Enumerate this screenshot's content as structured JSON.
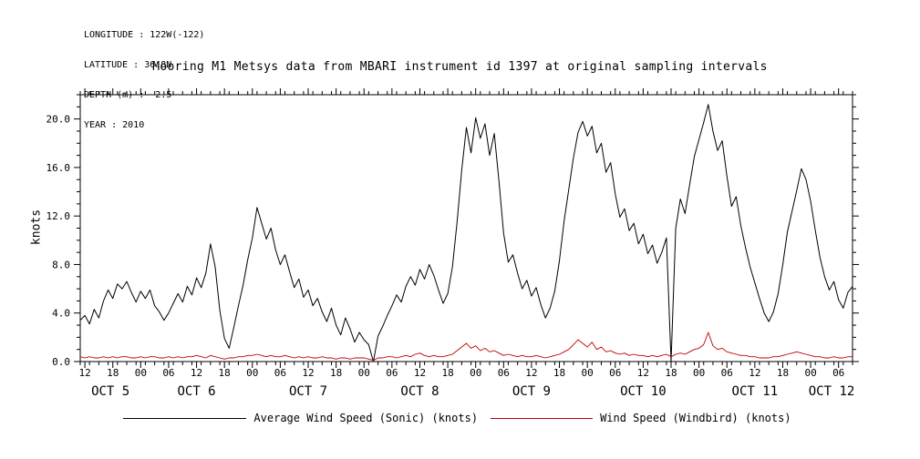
{
  "header": {
    "longitude": "LONGITUDE : 122W(-122)",
    "latitude": "LATITUDE : 36.8N",
    "depth": "DEPTH (m) : -2.5",
    "year": "YEAR : 2010"
  },
  "title": "Mooring M1 Metsys data from MBARI instrument id 1397 at original sampling intervals",
  "legend": [
    {
      "label": "Average Wind Speed (Sonic) (knots)",
      "color": "#000000"
    },
    {
      "label": "Wind Speed (Windbird) (knots)",
      "color": "#c00000"
    }
  ],
  "chart_data": {
    "type": "line",
    "title": "Mooring M1 Metsys data from MBARI instrument id 1397 at original sampling intervals",
    "xlabel": "",
    "ylabel": "knots",
    "ylim": [
      0,
      22
    ],
    "yticks": [
      0,
      4,
      8,
      12,
      16,
      20
    ],
    "ytick_labels": [
      "0.0",
      "4.0",
      "8.0",
      "12.0",
      "16.0",
      "20.0"
    ],
    "y_minor_step": 1,
    "grid": false,
    "legend_position": "bottom",
    "x_hours_span": 166,
    "x_start": "OCT 5 11:00",
    "sample_interval_hours": 1,
    "xtick_first_hour": 1,
    "xtick_step_hours": 6,
    "x_minor_step_hours": 2,
    "xtick_labels": [
      "12",
      "18",
      "00",
      "06",
      "12",
      "18",
      "00",
      "06",
      "12",
      "18",
      "00",
      "06",
      "12",
      "18",
      "00",
      "06",
      "12",
      "18",
      "00",
      "06",
      "12",
      "18",
      "00",
      "06",
      "12",
      "18",
      "00",
      "06"
    ],
    "date_labels": [
      {
        "label": "OCT 5",
        "center_hour": 6.5
      },
      {
        "label": "OCT 6",
        "center_hour": 25
      },
      {
        "label": "OCT 7",
        "center_hour": 49
      },
      {
        "label": "OCT 8",
        "center_hour": 73
      },
      {
        "label": "OCT 9",
        "center_hour": 97
      },
      {
        "label": "OCT 10",
        "center_hour": 121
      },
      {
        "label": "OCT 11",
        "center_hour": 145
      },
      {
        "label": "OCT 12",
        "center_hour": 161.5
      }
    ],
    "series": [
      {
        "name": "Average Wind Speed (Sonic) (knots)",
        "color": "#000000",
        "values": [
          3.4,
          3.8,
          3.1,
          4.3,
          3.6,
          5.0,
          5.9,
          5.2,
          6.4,
          6.0,
          6.6,
          5.7,
          4.9,
          5.8,
          5.2,
          5.9,
          4.6,
          4.1,
          3.4,
          4.0,
          4.8,
          5.6,
          4.9,
          6.2,
          5.5,
          6.9,
          6.1,
          7.3,
          9.7,
          7.8,
          4.2,
          1.9,
          1.1,
          2.8,
          4.6,
          6.3,
          8.4,
          10.2,
          12.7,
          11.4,
          10.1,
          11.0,
          9.2,
          8.0,
          8.8,
          7.4,
          6.1,
          6.8,
          5.3,
          5.9,
          4.6,
          5.2,
          4.1,
          3.3,
          4.4,
          3.0,
          2.2,
          3.6,
          2.7,
          1.6,
          2.4,
          1.8,
          1.4,
          0.0,
          2.1,
          2.9,
          3.8,
          4.6,
          5.5,
          4.9,
          6.2,
          7.0,
          6.3,
          7.6,
          6.8,
          8.0,
          7.1,
          5.9,
          4.8,
          5.6,
          7.8,
          11.5,
          15.8,
          19.3,
          17.2,
          20.1,
          18.4,
          19.6,
          17.0,
          18.8,
          14.9,
          10.6,
          8.2,
          8.8,
          7.3,
          6.0,
          6.7,
          5.4,
          6.1,
          4.7,
          3.6,
          4.4,
          5.8,
          8.3,
          11.6,
          14.2,
          16.8,
          18.9,
          19.8,
          18.6,
          19.4,
          17.2,
          18.0,
          15.6,
          16.4,
          13.8,
          11.9,
          12.6,
          10.8,
          11.4,
          9.7,
          10.5,
          8.9,
          9.6,
          8.1,
          9.0,
          10.2,
          0.0,
          11.0,
          13.4,
          12.2,
          14.6,
          16.9,
          18.3,
          19.7,
          21.2,
          19.0,
          17.4,
          18.2,
          15.3,
          12.8,
          13.6,
          11.2,
          9.4,
          7.8,
          6.5,
          5.2,
          4.0,
          3.3,
          4.1,
          5.6,
          8.0,
          10.7,
          12.4,
          14.1,
          15.9,
          15.0,
          13.2,
          10.8,
          8.6,
          7.0,
          5.9,
          6.6,
          5.1,
          4.4,
          5.7,
          6.2
        ]
      },
      {
        "name": "Wind Speed (Windbird) (knots)",
        "color": "#c00000",
        "values": [
          0.4,
          0.3,
          0.4,
          0.3,
          0.3,
          0.4,
          0.3,
          0.4,
          0.3,
          0.4,
          0.4,
          0.3,
          0.3,
          0.4,
          0.3,
          0.4,
          0.4,
          0.3,
          0.3,
          0.4,
          0.3,
          0.4,
          0.3,
          0.4,
          0.4,
          0.5,
          0.4,
          0.3,
          0.5,
          0.4,
          0.3,
          0.2,
          0.3,
          0.3,
          0.4,
          0.4,
          0.5,
          0.5,
          0.6,
          0.5,
          0.4,
          0.5,
          0.4,
          0.4,
          0.5,
          0.4,
          0.3,
          0.4,
          0.3,
          0.4,
          0.3,
          0.3,
          0.4,
          0.3,
          0.3,
          0.2,
          0.3,
          0.3,
          0.2,
          0.3,
          0.3,
          0.3,
          0.2,
          0.1,
          0.3,
          0.3,
          0.4,
          0.4,
          0.3,
          0.4,
          0.5,
          0.4,
          0.6,
          0.7,
          0.5,
          0.4,
          0.5,
          0.4,
          0.4,
          0.5,
          0.6,
          0.9,
          1.2,
          1.5,
          1.1,
          1.3,
          0.9,
          1.1,
          0.8,
          0.9,
          0.7,
          0.5,
          0.6,
          0.5,
          0.4,
          0.5,
          0.4,
          0.4,
          0.5,
          0.4,
          0.3,
          0.4,
          0.5,
          0.6,
          0.8,
          1.0,
          1.4,
          1.8,
          1.5,
          1.2,
          1.6,
          1.0,
          1.2,
          0.8,
          0.9,
          0.7,
          0.6,
          0.7,
          0.5,
          0.6,
          0.5,
          0.5,
          0.4,
          0.5,
          0.4,
          0.5,
          0.6,
          0.4,
          0.6,
          0.7,
          0.6,
          0.8,
          1.0,
          1.1,
          1.4,
          2.4,
          1.3,
          1.0,
          1.1,
          0.8,
          0.7,
          0.6,
          0.5,
          0.5,
          0.4,
          0.4,
          0.3,
          0.3,
          0.3,
          0.4,
          0.4,
          0.5,
          0.6,
          0.7,
          0.8,
          0.7,
          0.6,
          0.5,
          0.4,
          0.4,
          0.3,
          0.3,
          0.4,
          0.3,
          0.3,
          0.4,
          0.4
        ]
      }
    ]
  }
}
